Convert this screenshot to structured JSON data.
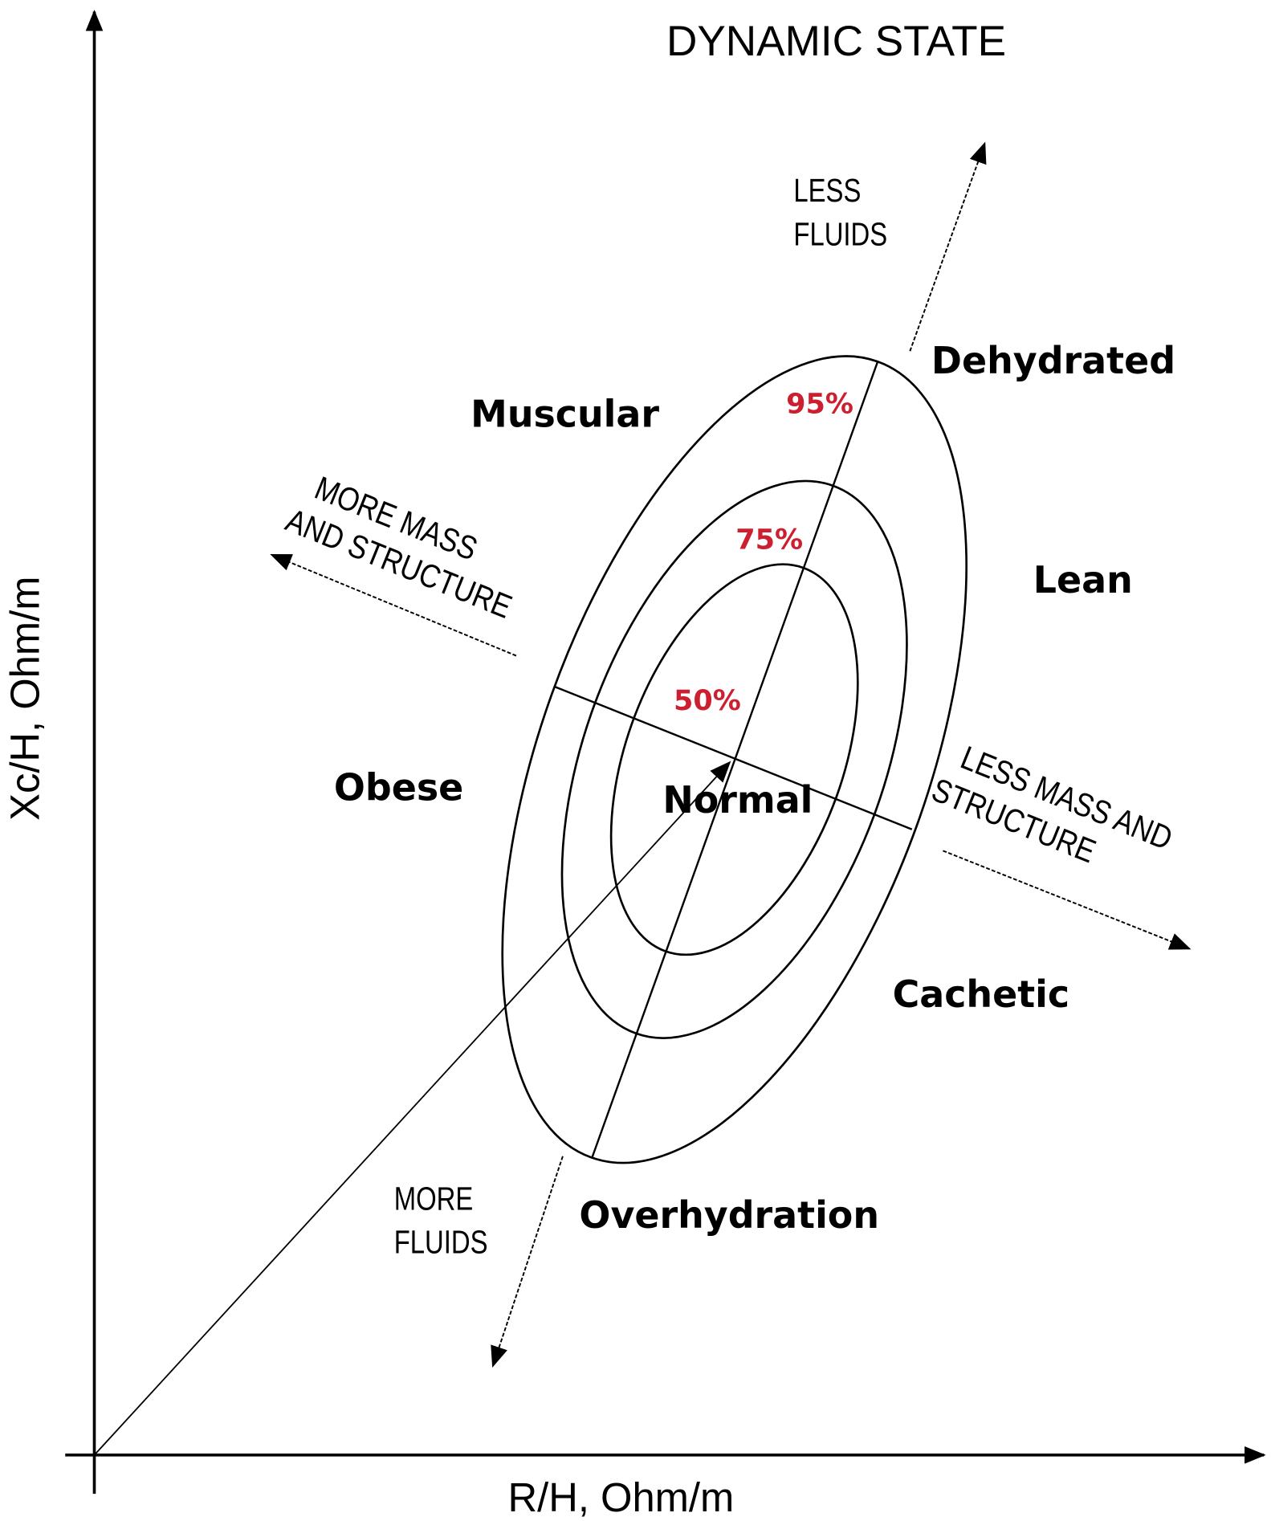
{
  "title": "DYNAMIC STATE",
  "axes": {
    "x_label": "R/H, Ohm/m",
    "y_label": "Xc/H, Ohm/m"
  },
  "ellipses": [
    {
      "label": "95%"
    },
    {
      "label": "75%"
    },
    {
      "label": "50%"
    }
  ],
  "regions": {
    "dehydrated": "Dehydrated",
    "muscular": "Muscular",
    "lean": "Lean",
    "obese": "Obese",
    "normal": "Normal",
    "cachetic": "Cachetic",
    "overhydration": "Overhydration"
  },
  "arrows": {
    "less_fluids": [
      "LESS",
      "FLUIDS"
    ],
    "more_fluids": [
      "MORE",
      "FLUIDS"
    ],
    "more_mass": [
      "MORE MASS",
      "AND STRUCTURE"
    ],
    "less_mass": [
      "LESS MASS AND",
      "STRUCTURE"
    ]
  },
  "colors": {
    "percent_label": "#cc1f2f",
    "lines": "#000000"
  }
}
